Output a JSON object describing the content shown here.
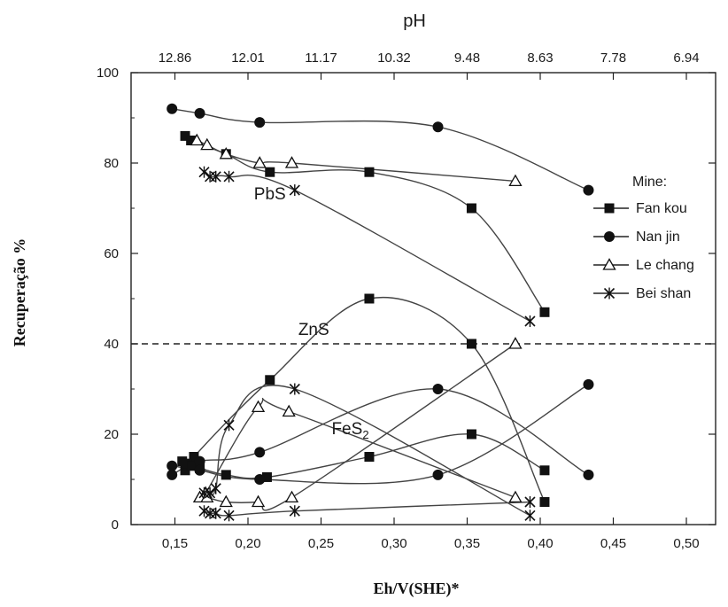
{
  "chart_data": {
    "type": "scatter",
    "xlabel": "Eh/V(SHE)*",
    "ylabel": "Recuperação %",
    "top_axis_label": "pH",
    "xlim": [
      0.12,
      0.52
    ],
    "xticks": [
      0.15,
      0.2,
      0.25,
      0.3,
      0.35,
      0.4,
      0.45,
      0.5
    ],
    "xtick_labels": [
      "0,15",
      "0,20",
      "0,25",
      "0,30",
      "0,35",
      "0,40",
      "0,45",
      "0,50"
    ],
    "top_ticks": [
      "12.86",
      "12.01",
      "11.17",
      "10.32",
      "9.48",
      "8.63",
      "7.78",
      "6.94"
    ],
    "ylim": [
      0,
      100
    ],
    "yticks": [
      0,
      20,
      40,
      60,
      80,
      100
    ],
    "ytick_labels": [
      "0",
      "20",
      "40",
      "60",
      "80",
      "100"
    ],
    "y_extra_labels": [
      {
        "y": 0,
        "text": "0"
      },
      {
        "y": 20,
        "text": "20"
      }
    ],
    "dashed_zero_line_y": 40,
    "legend_title": "Mine:",
    "legend_position": "right",
    "group_labels": [
      {
        "text": "PbS",
        "at": [
          0.215,
          72
        ]
      },
      {
        "text": "ZnS",
        "at": [
          0.245,
          42
        ]
      },
      {
        "text": "FeS",
        "subscript": "2",
        "at": [
          0.27,
          20
        ]
      }
    ],
    "series": [
      {
        "name": "Fan kou",
        "marker": "square",
        "color": "#111111",
        "groups": [
          [
            [
              0.157,
              86
            ],
            [
              0.161,
              85
            ],
            [
              0.185,
              82
            ],
            [
              0.215,
              78
            ],
            [
              0.283,
              78
            ],
            [
              0.353,
              70
            ],
            [
              0.403,
              47
            ]
          ],
          [
            [
              0.157,
              12
            ],
            [
              0.161,
              13
            ],
            [
              0.163,
              15
            ],
            [
              0.215,
              32
            ],
            [
              0.283,
              50
            ],
            [
              0.353,
              40
            ],
            [
              0.403,
              5
            ]
          ],
          [
            [
              0.155,
              14
            ],
            [
              0.158,
              13.5
            ],
            [
              0.162,
              13
            ],
            [
              0.167,
              12.5
            ],
            [
              0.185,
              11
            ],
            [
              0.213,
              10.5
            ],
            [
              0.283,
              15
            ],
            [
              0.353,
              20
            ],
            [
              0.403,
              12
            ]
          ]
        ]
      },
      {
        "name": "Nan jin",
        "marker": "circle",
        "color": "#111111",
        "groups": [
          [
            [
              0.148,
              92
            ],
            [
              0.167,
              91
            ],
            [
              0.208,
              89
            ],
            [
              0.33,
              88
            ],
            [
              0.433,
              74
            ]
          ],
          [
            [
              0.148,
              11
            ],
            [
              0.167,
              14
            ],
            [
              0.208,
              16
            ],
            [
              0.33,
              30
            ],
            [
              0.433,
              11
            ]
          ],
          [
            [
              0.148,
              13
            ],
            [
              0.167,
              12
            ],
            [
              0.208,
              10
            ],
            [
              0.33,
              11
            ],
            [
              0.433,
              31
            ]
          ]
        ]
      },
      {
        "name": "Le chang",
        "marker": "triangle",
        "color": "#111111",
        "groups": [
          [
            [
              0.165,
              85
            ],
            [
              0.172,
              84
            ],
            [
              0.185,
              82
            ],
            [
              0.208,
              80
            ],
            [
              0.23,
              80
            ],
            [
              0.383,
              76
            ]
          ],
          [
            [
              0.167,
              6
            ],
            [
              0.171,
              7
            ],
            [
              0.207,
              26
            ],
            [
              0.228,
              25
            ],
            [
              0.383,
              6
            ]
          ],
          [
            [
              0.167,
              6
            ],
            [
              0.172,
              6
            ],
            [
              0.185,
              5
            ],
            [
              0.207,
              5
            ],
            [
              0.23,
              6
            ],
            [
              0.383,
              40
            ]
          ]
        ]
      },
      {
        "name": "Bei shan",
        "marker": "star",
        "color": "#111111",
        "groups": [
          [
            [
              0.17,
              78
            ],
            [
              0.174,
              77
            ],
            [
              0.178,
              77
            ],
            [
              0.187,
              77
            ],
            [
              0.232,
              74
            ],
            [
              0.393,
              45
            ]
          ],
          [
            [
              0.17,
              7
            ],
            [
              0.174,
              7
            ],
            [
              0.178,
              8
            ],
            [
              0.187,
              22
            ],
            [
              0.232,
              30
            ],
            [
              0.393,
              2
            ]
          ],
          [
            [
              0.17,
              3
            ],
            [
              0.174,
              2.5
            ],
            [
              0.178,
              2.5
            ],
            [
              0.187,
              2
            ],
            [
              0.232,
              3
            ],
            [
              0.393,
              5
            ]
          ]
        ]
      }
    ]
  }
}
